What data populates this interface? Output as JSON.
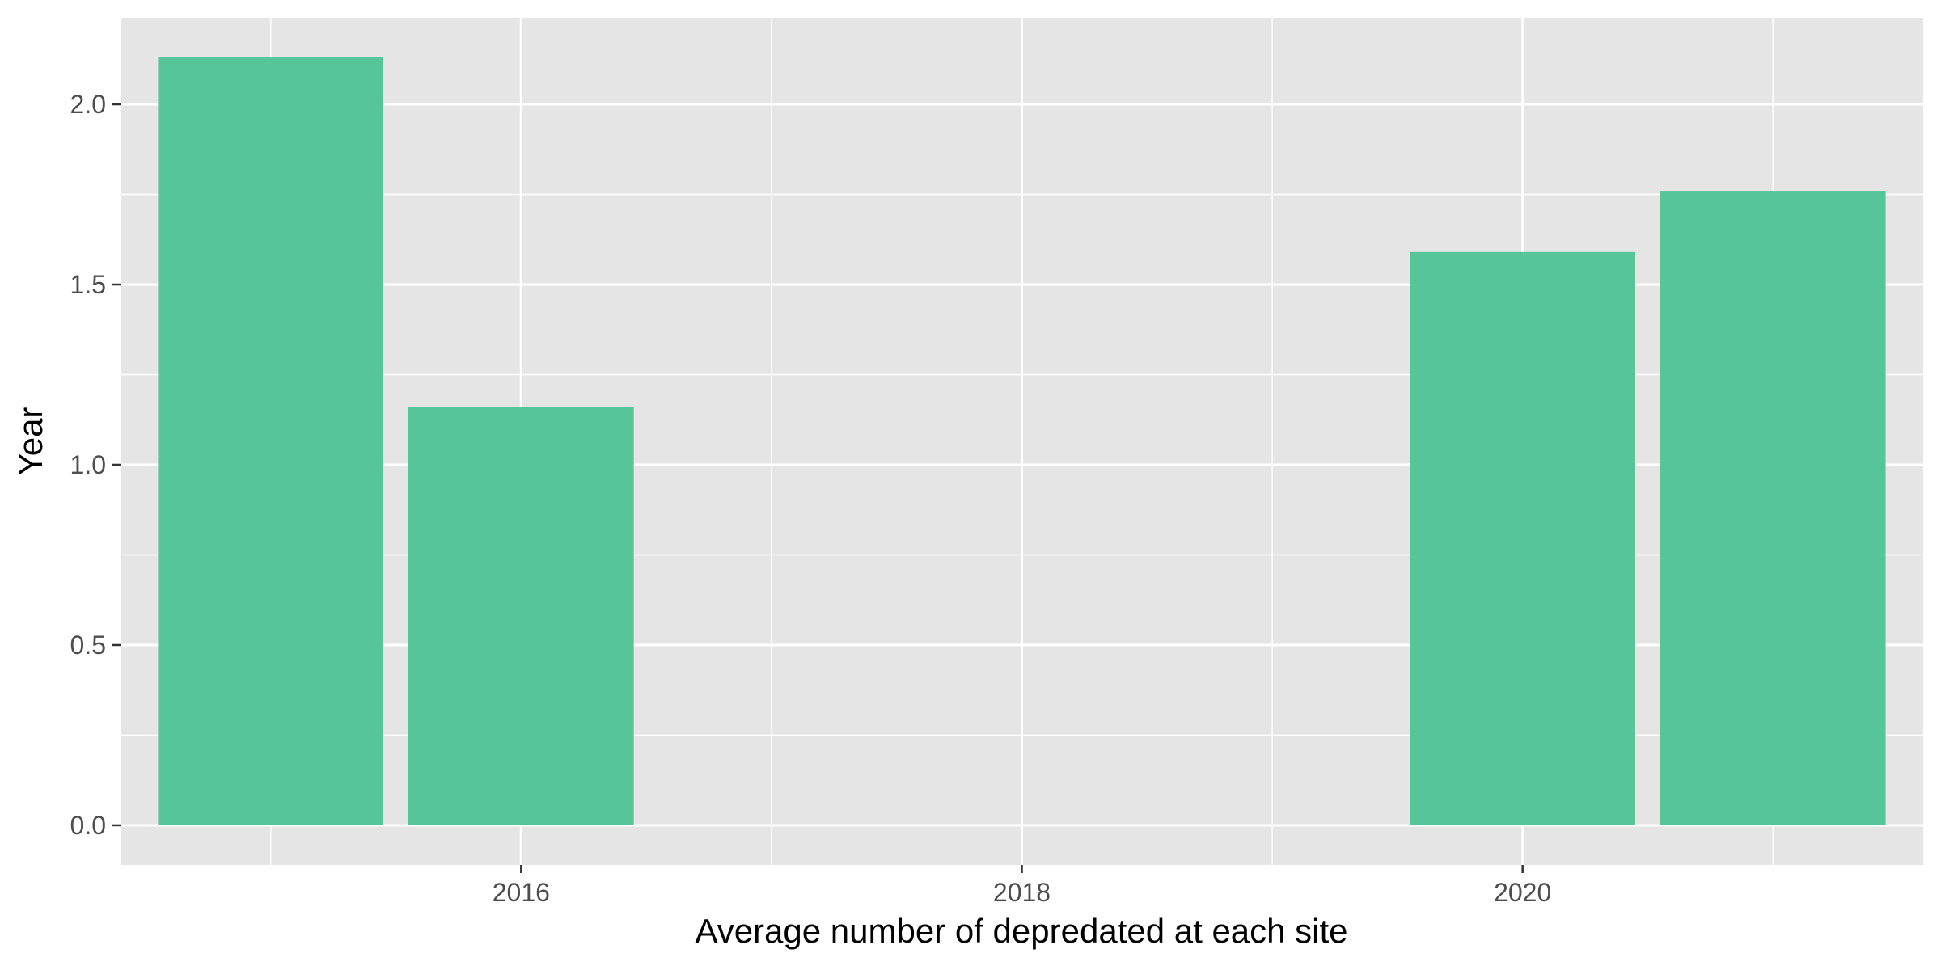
{
  "chart_data": {
    "type": "bar",
    "x": [
      2015,
      2016,
      2020,
      2021
    ],
    "values": [
      2.13,
      1.16,
      1.59,
      1.76
    ],
    "xlabel": "Average number of depredated at each site",
    "ylabel": "Year",
    "xlim": [
      2014.4,
      2021.6
    ],
    "ylim": [
      -0.11,
      2.24
    ],
    "x_ticks": [
      2016,
      2018,
      2020
    ],
    "x_tick_labels": [
      "2016",
      "2018",
      "2020"
    ],
    "y_ticks": [
      0.0,
      0.5,
      1.0,
      1.5,
      2.0
    ],
    "y_tick_labels": [
      "0.0",
      "0.5",
      "1.0",
      "1.5",
      "2.0"
    ],
    "bar_color": "#57c59a",
    "panel_background": "#e5e5e5",
    "grid": true,
    "legend": "none"
  }
}
